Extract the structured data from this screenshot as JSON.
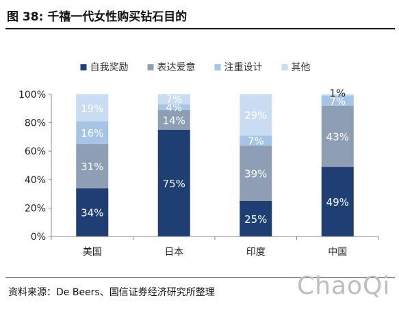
{
  "header": {
    "title": "图 38: 千禧一代女性购买钻石目的"
  },
  "footer": {
    "source": "资料来源：De Beers、国信证券经济研究所整理",
    "watermark": "ChaoQi"
  },
  "chart_data": {
    "type": "bar",
    "stacked": true,
    "categories": [
      "美国",
      "日本",
      "印度",
      "中国"
    ],
    "series": [
      {
        "name": "自我奖励",
        "values": [
          34,
          75,
          25,
          49
        ],
        "labels": [
          "34%",
          "75%",
          "25%",
          "49%"
        ],
        "color": "#1f3f73"
      },
      {
        "name": "表达爱意",
        "values": [
          31,
          14,
          39,
          43
        ],
        "labels": [
          "31%",
          "14%",
          "39%",
          "43%"
        ],
        "color": "#8e9fb3"
      },
      {
        "name": "注重设计",
        "values": [
          16,
          4,
          7,
          7
        ],
        "labels": [
          "16%",
          "4%",
          "7%",
          "7%"
        ],
        "color": "#a6c4e6"
      },
      {
        "name": "其他",
        "values": [
          19,
          7,
          29,
          1
        ],
        "labels": [
          "19%",
          "7%",
          "29%",
          "1%"
        ],
        "color": "#c9dcf1"
      }
    ],
    "ylim": [
      0,
      100
    ],
    "yticks": [
      "0%",
      "20%",
      "40%",
      "60%",
      "80%",
      "100%"
    ],
    "grid": false,
    "legend": "top"
  }
}
